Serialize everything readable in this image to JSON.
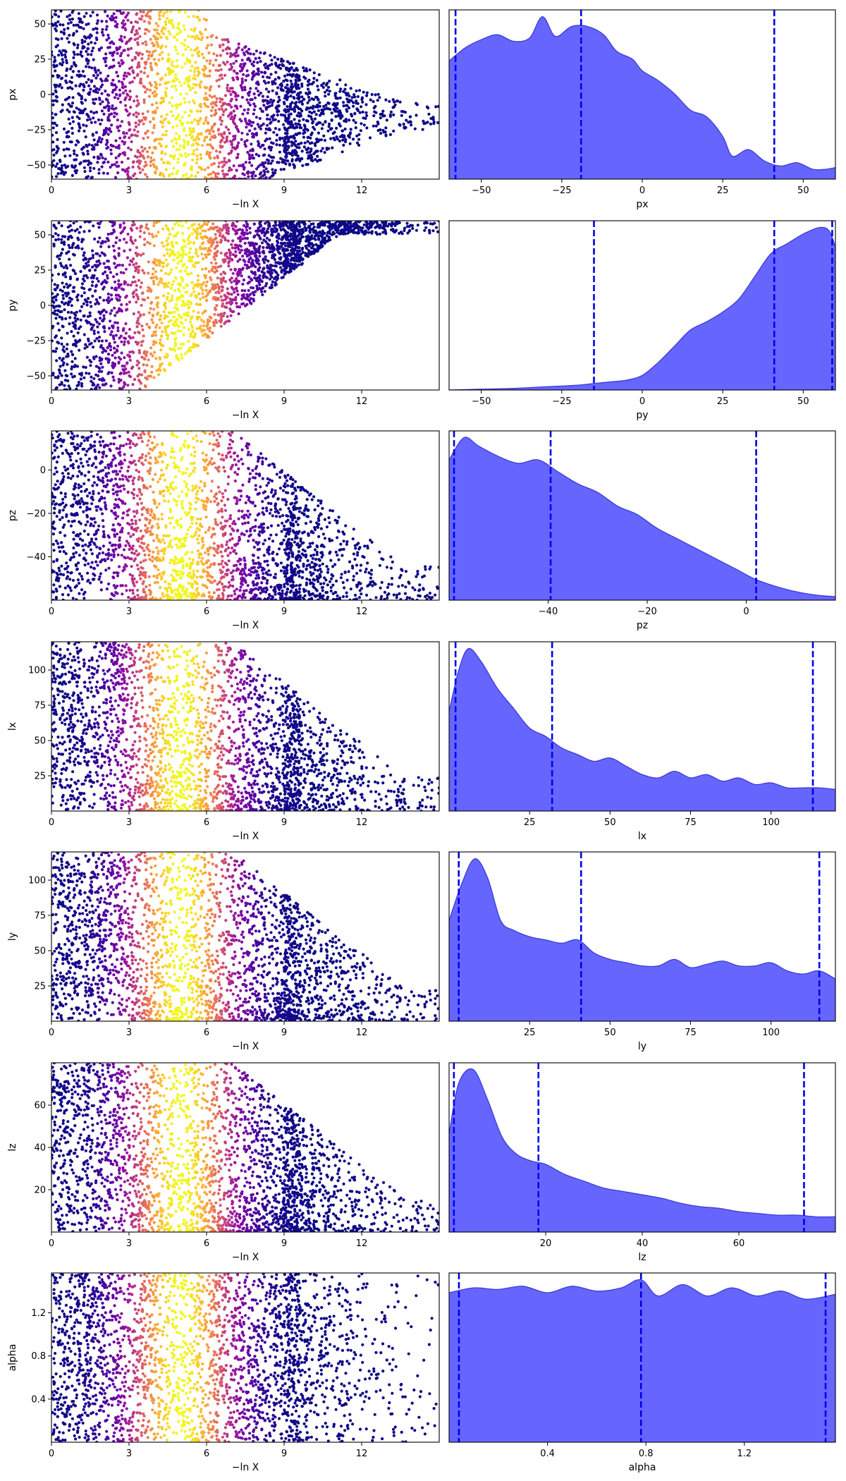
{
  "chart_data": [
    {
      "type": "scatter",
      "panel": "trace",
      "param": "px",
      "xlabel": "−ln X",
      "ylabel": "px",
      "xlim": [
        0,
        15
      ],
      "ylim": [
        -60,
        60
      ],
      "xticks": [
        0,
        3,
        6,
        9,
        12
      ],
      "yticks": [
        -50,
        -25,
        0,
        25,
        50
      ],
      "colormap": "plasma",
      "point_color_role": "posterior weight",
      "shape": "fan",
      "y_density_peak": -20
    },
    {
      "type": "area",
      "panel": "marginal",
      "param": "px",
      "xlabel": "px",
      "xlim": [
        -60,
        60
      ],
      "xticks": [
        -50,
        -25,
        0,
        25,
        50
      ],
      "fill": "#6666ff",
      "line_color": "#3b3bd6",
      "x": [
        -60,
        -55,
        -50,
        -45,
        -40,
        -35,
        -31,
        -27,
        -22,
        -17,
        -12,
        -8,
        -3,
        0,
        5,
        10,
        15,
        20,
        25,
        28,
        33,
        38,
        43,
        48,
        53,
        57,
        60
      ],
      "density": [
        0.72,
        0.8,
        0.85,
        0.88,
        0.84,
        0.86,
        0.99,
        0.87,
        0.93,
        0.93,
        0.88,
        0.78,
        0.73,
        0.66,
        0.6,
        0.52,
        0.42,
        0.38,
        0.26,
        0.14,
        0.18,
        0.11,
        0.08,
        0.1,
        0.06,
        0.06,
        0.07
      ],
      "quantiles": [
        -58,
        -19,
        41
      ]
    },
    {
      "type": "scatter",
      "panel": "trace",
      "param": "py",
      "xlabel": "−ln X",
      "ylabel": "py",
      "xlim": [
        0,
        15
      ],
      "ylim": [
        -60,
        60
      ],
      "xticks": [
        0,
        3,
        6,
        9,
        12
      ],
      "yticks": [
        -50,
        -25,
        0,
        25,
        50
      ],
      "colormap": "plasma",
      "point_color_role": "posterior weight",
      "shape": "rising",
      "y_density_peak": 50
    },
    {
      "type": "area",
      "panel": "marginal",
      "param": "py",
      "xlabel": "py",
      "xlim": [
        -60,
        60
      ],
      "xticks": [
        -50,
        -25,
        0,
        25,
        50
      ],
      "fill": "#6666ff",
      "line_color": "#3b3bd6",
      "x": [
        -60,
        -50,
        -40,
        -30,
        -20,
        -15,
        -10,
        -5,
        0,
        5,
        10,
        15,
        20,
        25,
        30,
        35,
        40,
        45,
        50,
        55,
        58,
        60
      ],
      "density": [
        0.0,
        0.005,
        0.01,
        0.02,
        0.03,
        0.04,
        0.05,
        0.06,
        0.09,
        0.17,
        0.27,
        0.37,
        0.42,
        0.48,
        0.56,
        0.7,
        0.84,
        0.9,
        0.96,
        1.0,
        0.98,
        0.88
      ],
      "quantiles": [
        -15,
        41,
        59
      ]
    },
    {
      "type": "scatter",
      "panel": "trace",
      "param": "pz",
      "xlabel": "−ln X",
      "ylabel": "pz",
      "xlim": [
        0,
        15
      ],
      "ylim": [
        -60,
        18
      ],
      "xticks": [
        0,
        3,
        6,
        9,
        12
      ],
      "yticks": [
        -40,
        -20,
        0
      ],
      "colormap": "plasma",
      "point_color_role": "posterior weight",
      "shape": "low",
      "y_density_peak": -55
    },
    {
      "type": "area",
      "panel": "marginal",
      "param": "pz",
      "xlabel": "pz",
      "xlim": [
        -60,
        18
      ],
      "xticks": [
        -40,
        -20,
        0
      ],
      "fill": "#6666ff",
      "line_color": "#3b3bd6",
      "x": [
        -60,
        -57,
        -54,
        -50,
        -46,
        -42,
        -38,
        -34,
        -30,
        -26,
        -22,
        -18,
        -14,
        -10,
        -6,
        -2,
        2,
        6,
        10,
        14,
        18
      ],
      "density": [
        0.82,
        0.95,
        0.9,
        0.84,
        0.8,
        0.82,
        0.75,
        0.68,
        0.63,
        0.55,
        0.5,
        0.42,
        0.36,
        0.3,
        0.24,
        0.18,
        0.12,
        0.08,
        0.05,
        0.03,
        0.02
      ],
      "quantiles": [
        -59,
        -39.5,
        2
      ]
    },
    {
      "type": "scatter",
      "panel": "trace",
      "param": "lx",
      "xlabel": "−ln X",
      "ylabel": "lx",
      "xlim": [
        0,
        15
      ],
      "ylim": [
        0,
        120
      ],
      "xticks": [
        0,
        3,
        6,
        9,
        12
      ],
      "yticks": [
        25,
        50,
        75,
        100
      ],
      "colormap": "plasma",
      "point_color_role": "posterior weight",
      "shape": "low",
      "y_density_peak": 5
    },
    {
      "type": "area",
      "panel": "marginal",
      "param": "lx",
      "xlabel": "lx",
      "xlim": [
        0,
        120
      ],
      "xticks": [
        25,
        50,
        75,
        100
      ],
      "fill": "#6666ff",
      "line_color": "#3b3bd6",
      "x": [
        0,
        3,
        6,
        10,
        15,
        20,
        25,
        30,
        35,
        40,
        45,
        50,
        55,
        60,
        65,
        70,
        75,
        80,
        85,
        90,
        95,
        100,
        105,
        110,
        115,
        120
      ],
      "density": [
        0.6,
        0.85,
        0.98,
        0.9,
        0.74,
        0.62,
        0.5,
        0.45,
        0.38,
        0.34,
        0.3,
        0.32,
        0.27,
        0.22,
        0.2,
        0.24,
        0.2,
        0.22,
        0.18,
        0.2,
        0.16,
        0.17,
        0.14,
        0.14,
        0.14,
        0.13
      ],
      "quantiles": [
        2,
        32,
        113
      ]
    },
    {
      "type": "scatter",
      "panel": "trace",
      "param": "ly",
      "xlabel": "−ln X",
      "ylabel": "ly",
      "xlim": [
        0,
        15
      ],
      "ylim": [
        0,
        120
      ],
      "xticks": [
        0,
        3,
        6,
        9,
        12
      ],
      "yticks": [
        25,
        50,
        75,
        100
      ],
      "colormap": "plasma",
      "point_color_role": "posterior weight",
      "shape": "low",
      "y_density_peak": 8
    },
    {
      "type": "area",
      "panel": "marginal",
      "param": "ly",
      "xlabel": "ly",
      "xlim": [
        0,
        120
      ],
      "xticks": [
        25,
        50,
        75,
        100
      ],
      "fill": "#6666ff",
      "line_color": "#3b3bd6",
      "x": [
        0,
        4,
        8,
        12,
        16,
        20,
        25,
        30,
        35,
        40,
        45,
        50,
        55,
        60,
        65,
        70,
        75,
        80,
        85,
        90,
        95,
        100,
        105,
        110,
        115,
        120
      ],
      "density": [
        0.62,
        0.85,
        1.0,
        0.88,
        0.62,
        0.56,
        0.52,
        0.5,
        0.48,
        0.5,
        0.42,
        0.38,
        0.36,
        0.34,
        0.34,
        0.38,
        0.33,
        0.35,
        0.37,
        0.34,
        0.34,
        0.36,
        0.31,
        0.29,
        0.31,
        0.26
      ],
      "quantiles": [
        3,
        41,
        115
      ]
    },
    {
      "type": "scatter",
      "panel": "trace",
      "param": "lz",
      "xlabel": "−ln X",
      "ylabel": "lz",
      "xlim": [
        0,
        15
      ],
      "ylim": [
        0,
        80
      ],
      "xticks": [
        0,
        3,
        6,
        9,
        12
      ],
      "yticks": [
        20,
        40,
        60
      ],
      "colormap": "plasma",
      "point_color_role": "posterior weight",
      "shape": "low",
      "y_density_peak": 5
    },
    {
      "type": "area",
      "panel": "marginal",
      "param": "lz",
      "xlabel": "lz",
      "xlim": [
        0,
        80
      ],
      "xticks": [
        20,
        40,
        60
      ],
      "fill": "#6666ff",
      "line_color": "#3b3bd6",
      "x": [
        0,
        2,
        5,
        8,
        11,
        14,
        17,
        20,
        24,
        28,
        32,
        36,
        40,
        44,
        48,
        52,
        56,
        60,
        64,
        68,
        72,
        76,
        80
      ],
      "density": [
        0.58,
        0.88,
        0.96,
        0.78,
        0.56,
        0.46,
        0.42,
        0.4,
        0.34,
        0.3,
        0.26,
        0.24,
        0.22,
        0.2,
        0.17,
        0.15,
        0.14,
        0.12,
        0.11,
        0.1,
        0.1,
        0.09,
        0.09
      ],
      "quantiles": [
        1,
        18.5,
        73.5
      ]
    },
    {
      "type": "scatter",
      "panel": "trace",
      "param": "alpha",
      "xlabel": "−ln X",
      "ylabel": "alpha",
      "xlim": [
        0,
        15
      ],
      "ylim": [
        0,
        1.57
      ],
      "xticks": [
        0,
        3,
        6,
        9,
        12
      ],
      "yticks": [
        0.4,
        0.8,
        1.2
      ],
      "colormap": "plasma",
      "point_color_role": "posterior weight",
      "shape": "uniform",
      "y_density_peak": 0.8
    },
    {
      "type": "area",
      "panel": "marginal",
      "param": "alpha",
      "xlabel": "alpha",
      "xlim": [
        0,
        1.57
      ],
      "xticks": [
        0.4,
        0.8,
        1.2
      ],
      "fill": "#6666ff",
      "line_color": "#3b3bd6",
      "x": [
        0,
        0.1,
        0.2,
        0.3,
        0.4,
        0.5,
        0.6,
        0.7,
        0.78,
        0.85,
        0.95,
        1.05,
        1.15,
        1.25,
        1.35,
        1.45,
        1.57
      ],
      "density": [
        0.92,
        0.95,
        0.94,
        0.96,
        0.92,
        0.96,
        0.93,
        0.95,
        1.0,
        0.9,
        0.97,
        0.9,
        0.95,
        0.9,
        0.93,
        0.88,
        0.91
      ],
      "quantiles": [
        0.04,
        0.78,
        1.53
      ]
    }
  ]
}
